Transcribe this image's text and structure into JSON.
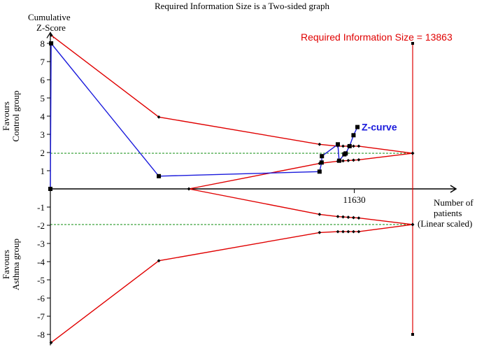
{
  "chart_data": {
    "type": "line",
    "title": "Required Information Size is a Two-sided graph",
    "ylabel_line1": "Cumulative",
    "ylabel_line2": "Z-Score",
    "xlabel_line1": "Number of",
    "xlabel_line2": "patients",
    "xlabel_line3": "(Linear scaled)",
    "upper_side_line1": "Favours",
    "upper_side_line2": "Control group",
    "lower_side_line1": "Favours",
    "lower_side_line2": "Asthma group",
    "ylim": [
      -8.6,
      8.6
    ],
    "xlim": [
      0,
      15000
    ],
    "y_ticks": [
      -8,
      -7,
      -6,
      -5,
      -4,
      -3,
      -2,
      -1,
      1,
      2,
      3,
      4,
      5,
      6,
      7,
      8
    ],
    "x_tick_label": "11630",
    "x_tick_value": 11630,
    "ris": {
      "label": "Required Information Size = 13863",
      "value": 13863,
      "color": "#e00000"
    },
    "z_curve": {
      "name": "Z-curve",
      "color": "#1a1adc",
      "x": [
        0,
        30,
        4150,
        10300,
        10380,
        10390,
        11000,
        11050,
        11250,
        11300,
        11450,
        11600,
        11750
      ],
      "y": [
        0,
        8.0,
        0.7,
        0.95,
        1.45,
        1.8,
        2.45,
        1.55,
        1.9,
        1.95,
        2.35,
        2.95,
        3.4
      ]
    },
    "upper_boundary": {
      "color": "#e00000",
      "x": [
        30,
        4150,
        10300,
        11000,
        11200,
        11400,
        11600,
        11800,
        13863
      ],
      "y": [
        8.45,
        3.95,
        2.45,
        2.35,
        2.35,
        2.35,
        2.35,
        2.35,
        1.96
      ]
    },
    "lower_boundary": {
      "color": "#e00000",
      "x": [
        30,
        4150,
        10300,
        11000,
        11200,
        11400,
        11600,
        11800,
        13863
      ],
      "y": [
        -8.45,
        -3.95,
        -2.4,
        -2.35,
        -2.35,
        -2.35,
        -2.35,
        -2.35,
        -1.96
      ]
    },
    "futility_upper": {
      "color": "#e00000",
      "x": [
        5300,
        10300,
        11000,
        11200,
        11400,
        11600,
        11800,
        13863
      ],
      "y": [
        0,
        1.4,
        1.52,
        1.54,
        1.56,
        1.58,
        1.6,
        1.96
      ]
    },
    "futility_lower": {
      "color": "#e00000",
      "x": [
        5300,
        10300,
        11000,
        11200,
        11400,
        11600,
        11800,
        13863
      ],
      "y": [
        0,
        -1.4,
        -1.52,
        -1.54,
        -1.56,
        -1.58,
        -1.6,
        -1.96
      ]
    },
    "significance_lines": {
      "color": "#2a9a2a",
      "values": [
        1.96,
        -1.96
      ]
    },
    "ris_line": {
      "y_range": [
        -8,
        8
      ]
    }
  }
}
